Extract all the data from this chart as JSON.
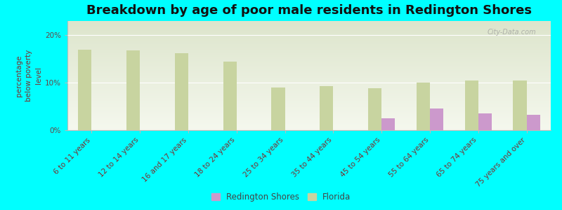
{
  "title": "Breakdown by age of poor male residents in Redington Shores",
  "ylabel": "percentage\nbelow poverty\nlevel",
  "background_color": "#00FFFF",
  "plot_bg_top": "#dde5cc",
  "plot_bg_bottom": "#f5f8ee",
  "categories": [
    "6 to 11 years",
    "12 to 14 years",
    "16 and 17 years",
    "18 to 24 years",
    "25 to 34 years",
    "35 to 44 years",
    "45 to 54 years",
    "55 to 64 years",
    "65 to 74 years",
    "75 years and over"
  ],
  "florida_values": [
    17.0,
    16.8,
    16.2,
    14.5,
    9.0,
    9.3,
    8.8,
    10.0,
    10.5,
    10.5
  ],
  "redington_values": [
    0,
    0,
    0,
    0,
    0,
    0,
    2.5,
    4.5,
    3.5,
    3.2
  ],
  "florida_color": "#c8d4a0",
  "redington_color": "#cc99cc",
  "legend_redington": "Redington Shores",
  "legend_florida": "Florida",
  "yticks": [
    0,
    10,
    20
  ],
  "ytick_labels": [
    "0%",
    "10%",
    "20%"
  ],
  "ylim": [
    0,
    23
  ],
  "watermark": "City-Data.com",
  "title_fontsize": 13,
  "axis_label_fontsize": 7.5,
  "tick_label_fontsize": 7.5
}
